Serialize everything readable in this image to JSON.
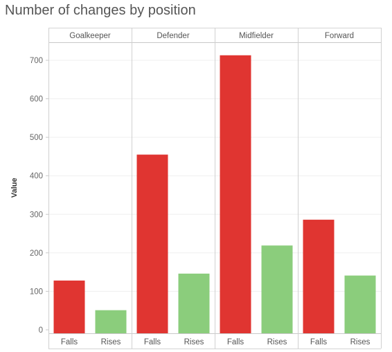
{
  "chart_data": {
    "type": "bar",
    "title": "Number of changes by position",
    "ylabel": "Value",
    "ylim": [
      -15,
      750
    ],
    "yticks": [
      0,
      100,
      200,
      300,
      400,
      500,
      600,
      700
    ],
    "grid": true,
    "categories": [
      "Goalkeeper",
      "Defender",
      "Midfielder",
      "Forward"
    ],
    "subcategories": [
      "Falls",
      "Rises"
    ],
    "series": [
      {
        "name": "Falls",
        "color": "#e03531",
        "values": [
          128,
          455,
          713,
          286
        ]
      },
      {
        "name": "Rises",
        "color": "#8bcd7c",
        "values": [
          51,
          146,
          219,
          141
        ]
      }
    ]
  }
}
